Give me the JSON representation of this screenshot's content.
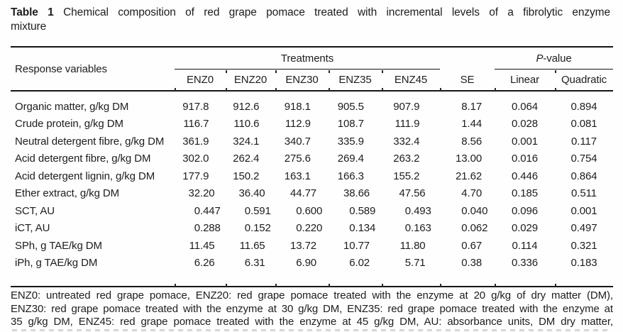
{
  "title": {
    "bold": "Table 1",
    "line1": "Chemical composition of red grape pomace treated with incremental levels of a fibrolytic enzyme",
    "line2": "mixture"
  },
  "table": {
    "row_header": "Response variables",
    "treatments_label": "Treatments",
    "pvalue_italic": "P",
    "pvalue_rest": "-value"
  },
  "chart_data": {
    "type": "table",
    "title": "Table 1 Chemical composition of red grape pomace treated with incremental levels of a fibrolytic enzyme mixture",
    "columns": [
      "ENZ0",
      "ENZ20",
      "ENZ30",
      "ENZ35",
      "ENZ45",
      "SE",
      "Linear",
      "Quadratic"
    ],
    "column_groups": [
      {
        "label": "Treatments",
        "spans": [
          "ENZ0",
          "ENZ20",
          "ENZ30",
          "ENZ35",
          "ENZ45"
        ]
      },
      {
        "label": "P-value",
        "spans": [
          "Linear",
          "Quadratic"
        ]
      }
    ],
    "rows": [
      {
        "label": "Organic matter, g/kg DM",
        "values": [
          "917.8",
          "912.6",
          "918.1",
          "905.5",
          "907.9",
          "8.17",
          "0.064",
          "0.894"
        ]
      },
      {
        "label": "Crude protein, g/kg DM",
        "values": [
          "116.7",
          "110.6",
          "112.9",
          "108.7",
          "111.9",
          "1.44",
          "0.028",
          "0.081"
        ]
      },
      {
        "label": "Neutral detergent fibre, g/kg DM",
        "values": [
          "361.9",
          "324.1",
          "340.7",
          "335.9",
          "332.4",
          "8.56",
          "0.001",
          "0.117"
        ]
      },
      {
        "label": "Acid detergent fibre, g/kg DM",
        "values": [
          "302.0",
          "262.4",
          "275.6",
          "269.4",
          "263.2",
          "13.00",
          "0.016",
          "0.754"
        ]
      },
      {
        "label": "Acid detergent lignin, g/kg DM",
        "values": [
          "177.9",
          "150.2",
          "163.1",
          "166.3",
          "155.2",
          "21.62",
          "0.446",
          "0.864"
        ]
      },
      {
        "label": "Ether extract, g/kg DM",
        "values": [
          "32.20",
          "36.40",
          "44.77",
          "38.66",
          "47.56",
          "4.70",
          "0.185",
          "0.511"
        ]
      },
      {
        "label": "SCT, AU",
        "values": [
          "0.447",
          "0.591",
          "0.600",
          "0.589",
          "0.493",
          "0.040",
          "0.096",
          "0.001"
        ]
      },
      {
        "label": "iCT, AU",
        "values": [
          "0.288",
          "0.152",
          "0.220",
          "0.134",
          "0.163",
          "0.062",
          "0.029",
          "0.497"
        ]
      },
      {
        "label": "SPh, g TAE/kg DM",
        "values": [
          "11.45",
          "11.65",
          "13.72",
          "10.77",
          "11.80",
          "0.67",
          "0.114",
          "0.321"
        ]
      },
      {
        "label": "iPh, g TAE/kg DM",
        "values": [
          "6.26",
          "6.31",
          "6.90",
          "6.02",
          "5.71",
          "0.38",
          "0.336",
          "0.183"
        ]
      }
    ]
  },
  "footnote": {
    "lines": [
      "ENZ0: untreated red grape pomace, ENZ20: red grape pomace treated with the enzyme at 20 g/kg of dry matter (DM),",
      "ENZ30: red grape pomace treated with the enzyme at 30 g/kg DM, ENZ35: red grape pomace treated with the enzyme at",
      "35 g/kg DM, ENZ45: red grape pomace treated with the enzyme at 45 g/kg DM, AU: absorbance units, DM dry matter,"
    ]
  }
}
